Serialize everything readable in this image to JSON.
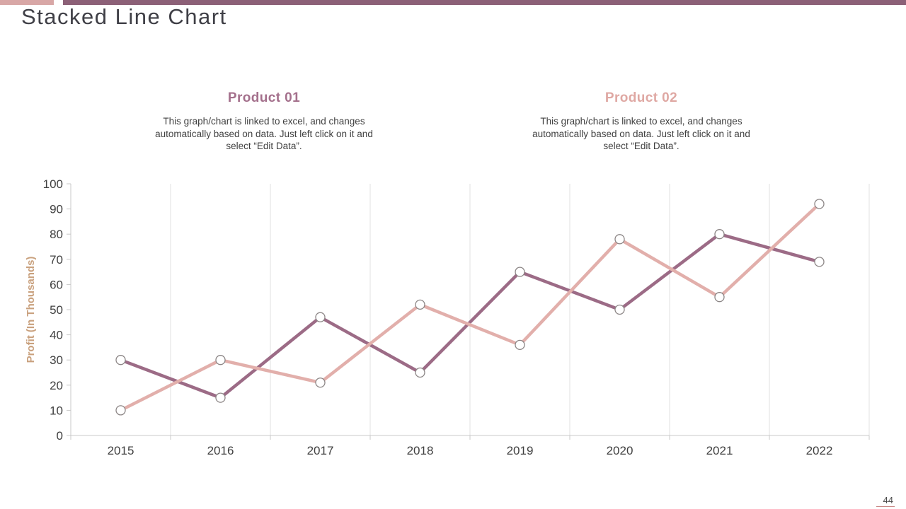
{
  "slide": {
    "title": "Stacked Line Chart",
    "page_number": "44"
  },
  "top_bar": {
    "left_color": "#d8a7a6",
    "right_color": "#8c6077"
  },
  "products": [
    {
      "heading": "Product 01",
      "heading_color": "#a4708c",
      "description": "This graph/chart is linked to excel, and changes automatically based on data. Just left click on it and select “Edit Data”."
    },
    {
      "heading": "Product 02",
      "heading_color": "#dfa8a3",
      "description": "This graph/chart is linked to excel, and changes automatically based on data. Just left click on it and select “Edit Data”."
    }
  ],
  "chart_data": {
    "type": "line",
    "categories": [
      "2015",
      "2016",
      "2017",
      "2018",
      "2019",
      "2020",
      "2021",
      "2022"
    ],
    "series": [
      {
        "name": "Product 01",
        "color": "#9c6b86",
        "values": [
          30,
          15,
          47,
          25,
          65,
          50,
          80,
          69
        ]
      },
      {
        "name": "Product 02",
        "color": "#e2afab",
        "values": [
          10,
          30,
          21,
          52,
          36,
          78,
          55,
          92
        ]
      }
    ],
    "title": "",
    "xlabel": "",
    "ylabel": "Profit (In Thousands)",
    "ylim": [
      0,
      100
    ],
    "ytick_step": 10,
    "grid": "vertical-only",
    "legend": "none",
    "colors": {
      "axis": "#c8c8c8",
      "gridline": "#e0e0e0",
      "tick_label": "#404040",
      "ylabel": "#c9a17e",
      "marker_fill": "#ffffff",
      "marker_stroke": "#8c8686"
    }
  }
}
